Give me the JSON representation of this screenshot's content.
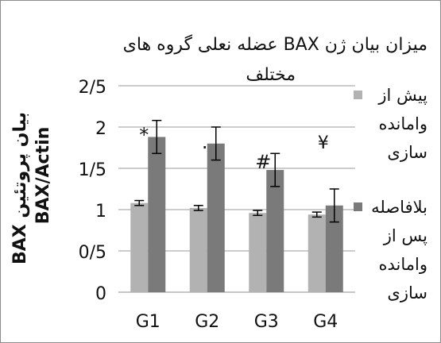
{
  "chart_data": {
    "type": "bar",
    "title_line1": "میزان بیان ژن BAX عضله نعلی گروه های",
    "title_line2": "مختلف",
    "ylabel_line1": "بیان پروتئین BAX",
    "ylabel_line2": "BAX/Actin",
    "categories": [
      "G1",
      "G2",
      "G3",
      "G4"
    ],
    "ylim": [
      0,
      2.5
    ],
    "yticks": [
      "0",
      "0/5",
      "1",
      "1/5",
      "2",
      "2/5"
    ],
    "ytick_values": [
      0,
      0.5,
      1,
      1.5,
      2,
      2.5
    ],
    "grid": true,
    "legend_position": "right",
    "series": [
      {
        "name_lines": [
          "پیش از",
          "وامانده",
          "سازی"
        ],
        "color": "#b2b2b2",
        "values": [
          1.08,
          1.02,
          0.96,
          0.94
        ],
        "errors": [
          0.03,
          0.03,
          0.03,
          0.03
        ]
      },
      {
        "name_lines": [
          "بلافاصله",
          "پس از",
          "وامانده",
          "سازی"
        ],
        "color": "#7a7a7a",
        "values": [
          1.88,
          1.8,
          1.48,
          1.05
        ],
        "errors": [
          0.2,
          0.2,
          0.2,
          0.2
        ]
      }
    ],
    "annotations": [
      {
        "text": "*",
        "category": 0,
        "series": 1
      },
      {
        "text": ".",
        "category": 1,
        "series": 1
      },
      {
        "text": "#",
        "category": 2,
        "series": 1
      },
      {
        "text": "¥",
        "category": 3,
        "series": 1
      }
    ]
  }
}
